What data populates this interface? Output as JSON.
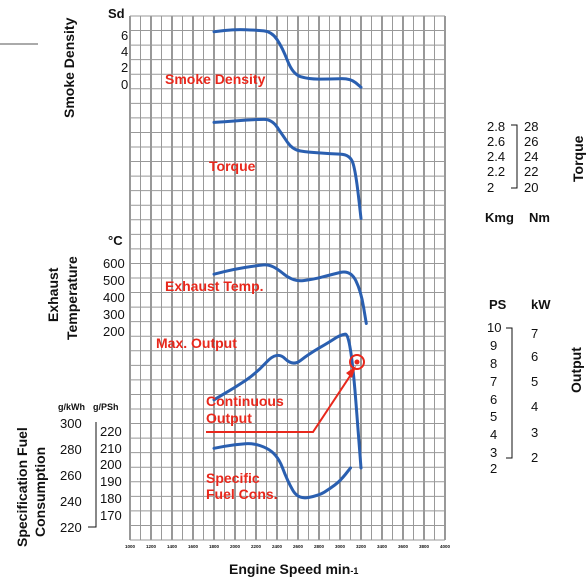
{
  "chart_data": {
    "type": "line",
    "xlabel": "Engine Speed min-1",
    "x_ticks": [
      "1000",
      "1200",
      "1400",
      "1600",
      "1800",
      "2000",
      "2200",
      "2400",
      "2600",
      "2800",
      "3000",
      "3200",
      "3400",
      "3600",
      "3800",
      "4000"
    ],
    "xlim": [
      1000,
      4000
    ],
    "panels": {
      "smoke": {
        "ylabel": "Smoke Density",
        "unit": "Sd",
        "ticks": [
          "6",
          "4",
          "2",
          "0"
        ],
        "series_label": "Smoke Density",
        "series": [
          {
            "x": [
              1800,
              2000,
              2200,
              2350,
              2450,
              2550,
              2700,
              2900,
              3100,
              3200
            ],
            "y": [
              6.4,
              6.7,
              6.6,
              6.4,
              4.5,
              1.2,
              0.6,
              0.6,
              0.7,
              -0.4
            ]
          }
        ]
      },
      "torque": {
        "ylabel": "Torque",
        "unit_left": "Kmg",
        "unit_right": "Nm",
        "ticks_kgm": [
          "2.8",
          "2.6",
          "2.4",
          "2.2",
          "2"
        ],
        "ticks_nm": [
          "28",
          "26",
          "24",
          "22",
          "20"
        ],
        "series_label": "Torque",
        "series": [
          {
            "x": [
              1800,
              2000,
              2200,
              2350,
              2450,
              2550,
              2700,
              2900,
              3100,
              3150,
              3200
            ],
            "y": [
              2.86,
              2.88,
              2.9,
              2.9,
              2.7,
              2.5,
              2.47,
              2.45,
              2.44,
              2.2,
              1.6
            ]
          }
        ]
      },
      "exhaust": {
        "ylabel": "Exhaust Temperature",
        "unit": "°C",
        "ticks": [
          "600",
          "500",
          "400",
          "300",
          "200"
        ],
        "series_label": "Exhaust Temp.",
        "series": [
          {
            "x": [
              1800,
              2000,
              2200,
              2350,
              2550,
              2750,
              2900,
              3100,
              3200,
              3250
            ],
            "y": [
              540,
              570,
              590,
              600,
              495,
              510,
              535,
              565,
              440,
              250
            ]
          }
        ]
      },
      "output": {
        "ylabel": "Output",
        "unit_ps": "PS",
        "unit_kw": "kW",
        "ticks_ps": [
          "10",
          "9",
          "8",
          "7",
          "6",
          "5",
          "4",
          "3",
          "2"
        ],
        "ticks_kw": [
          "7",
          "6",
          "5",
          "4",
          "3",
          "2"
        ],
        "series": [
          {
            "name": "Max. Output",
            "x": [
              1800,
              2000,
              2200,
              2400,
              2550,
              2700,
              2900,
              3000,
              3100,
              3200
            ],
            "y": [
              5.9,
              6.6,
              7.4,
              8.7,
              7.8,
              8.5,
              9.2,
              9.6,
              9.7,
              2.0
            ]
          }
        ],
        "labels": [
          "Max. Output",
          "Continuous Output"
        ],
        "continuous_point": {
          "x": 3000,
          "y": 8.1
        }
      },
      "fuel": {
        "ylabel": "Specification Fuel Consumption",
        "unit_gkwh": "g/kWh",
        "unit_gpsh": "g/PSh",
        "ticks_gkwh": [
          "300",
          "280",
          "260",
          "240",
          "220"
        ],
        "ticks_gpsh": [
          "220",
          "210",
          "200",
          "190",
          "180",
          "170"
        ],
        "series_label": "Specific Fuel Cons.",
        "series": [
          {
            "x": [
              1800,
              2000,
              2200,
              2400,
              2500,
              2600,
              2800,
              2900,
              3000,
              3100
            ],
            "y": [
              280,
              283,
              284,
              276,
              255,
              241,
              244,
              249,
              255,
              265
            ]
          }
        ]
      }
    }
  }
}
